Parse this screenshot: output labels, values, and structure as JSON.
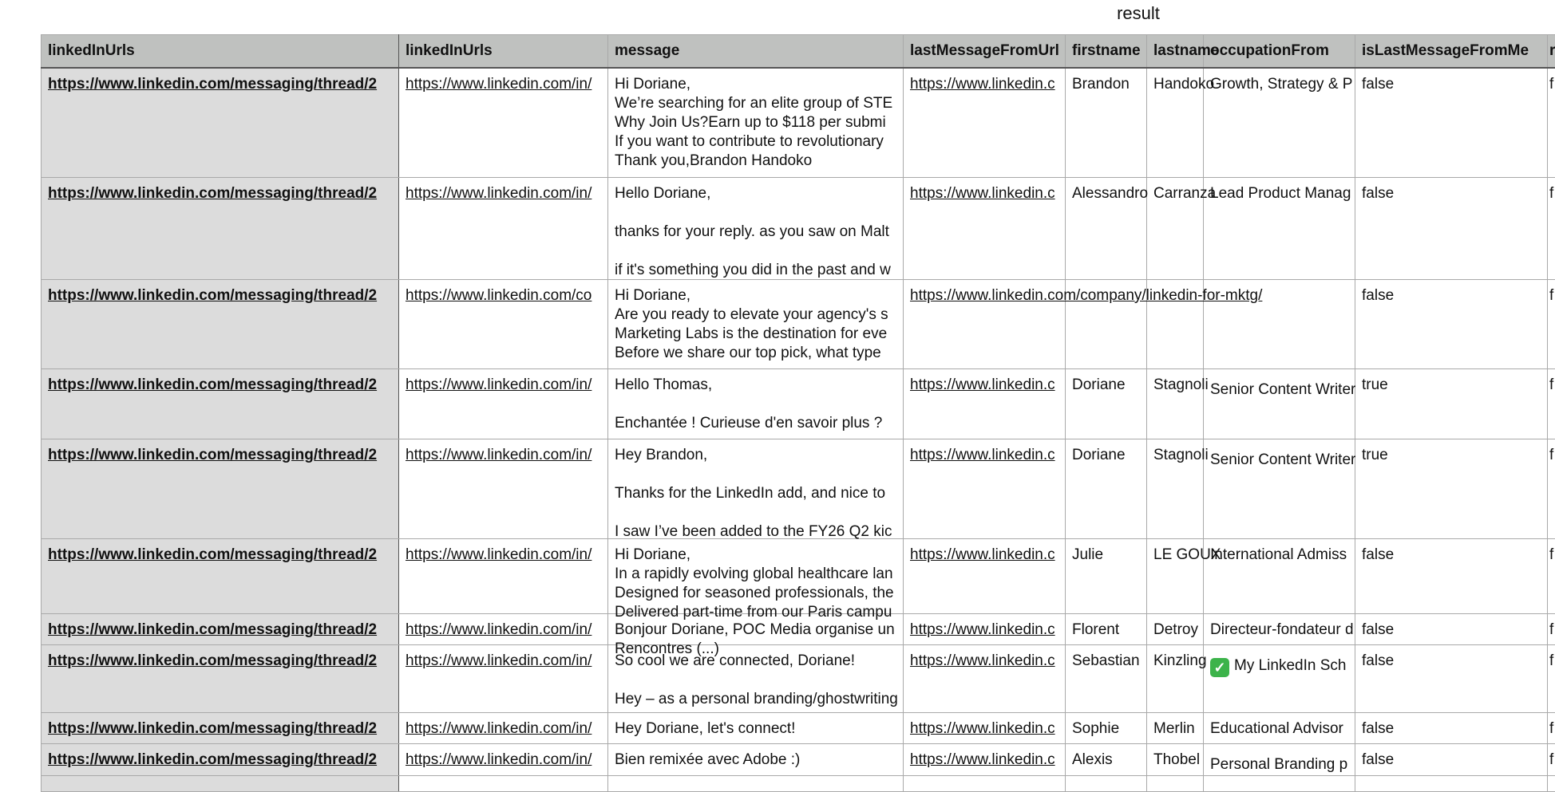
{
  "title": "result",
  "columns": [
    "linkedInUrls",
    "linkedInUrls",
    "message",
    "lastMessageFromUrl",
    "firstname",
    "lastname",
    "occupationFrom",
    "isLastMessageFromMe",
    "r"
  ],
  "rows": [
    {
      "thread": "https://www.linkedin.com/messaging/thread/2",
      "profile": "https://www.linkedin.com/in/",
      "message": [
        "Hi Doriane,",
        "We’re searching for an elite group of STE",
        "Why Join Us?Earn up to $118 per submi",
        "If you want to contribute to revolutionary",
        "Thank you,Brandon Handoko"
      ],
      "lastUrl": "https://www.linkedin.c",
      "firstname": "Brandon",
      "lastname": "Handoko",
      "occupation": "Growth, Strategy & P",
      "isLast": "false",
      "next": "f"
    },
    {
      "thread": "https://www.linkedin.com/messaging/thread/2",
      "profile": "https://www.linkedin.com/in/",
      "message": [
        "Hello Doriane,",
        "",
        "thanks for your reply. as you saw on Malt",
        "",
        "if it's something you did in the past and w"
      ],
      "lastUrl": "https://www.linkedin.c",
      "firstname": "Alessandro",
      "lastname": "Carranza",
      "occupation": "Lead Product Manag",
      "isLast": "false",
      "next": "f"
    },
    {
      "thread": "https://www.linkedin.com/messaging/thread/2",
      "profile": "https://www.linkedin.com/co",
      "message": [
        "Hi Doriane,",
        "Are you ready to elevate your agency's s",
        "Marketing Labs is the destination for eve",
        "Before we share our top pick, what type"
      ],
      "lastUrl": "https://www.linkedin.com/company/linkedin-for-mktg/",
      "firstname": "",
      "lastname": "",
      "occupation": "",
      "isLast": "false",
      "next": "f"
    },
    {
      "thread": "https://www.linkedin.com/messaging/thread/2",
      "profile": "https://www.linkedin.com/in/",
      "message": [
        "Hello Thomas,",
        "",
        "Enchantée ! Curieuse d'en savoir plus ?"
      ],
      "lastUrl": "https://www.linkedin.c",
      "firstname": "Doriane",
      "lastname": "Stagnoli",
      "occupation": "Senior Content Writer",
      "isLast": "true",
      "next": "f"
    },
    {
      "thread": "https://www.linkedin.com/messaging/thread/2",
      "profile": "https://www.linkedin.com/in/",
      "message": [
        "Hey Brandon,",
        "",
        "Thanks for the LinkedIn add, and nice to",
        "",
        "I saw I’ve been added to the FY26 Q2 kic"
      ],
      "lastUrl": "https://www.linkedin.c",
      "firstname": "Doriane",
      "lastname": "Stagnoli",
      "occupation": "Senior Content Writer",
      "isLast": "true",
      "next": "f"
    },
    {
      "thread": "https://www.linkedin.com/messaging/thread/2",
      "profile": "https://www.linkedin.com/in/",
      "message": [
        "Hi Doriane,",
        "In a rapidly evolving global healthcare lan",
        "Designed for seasoned professionals, the",
        "Delivered part-time from our Paris campu"
      ],
      "lastUrl": "https://www.linkedin.c",
      "firstname": "Julie",
      "lastname": "LE GOUX",
      "occupation": "International Admiss",
      "isLast": "false",
      "next": "f"
    },
    {
      "thread": "https://www.linkedin.com/messaging/thread/2",
      "profile": "https://www.linkedin.com/in/",
      "message": [
        "Bonjour Doriane, POC Media organise un",
        "Rencontres (...)"
      ],
      "lastUrl": "https://www.linkedin.c",
      "firstname": "Florent",
      "lastname": "Detroy",
      "occupation": "Directeur-fondateur d",
      "isLast": "false",
      "next": "f"
    },
    {
      "thread": "https://www.linkedin.com/messaging/thread/2",
      "profile": "https://www.linkedin.com/in/",
      "message": [
        "So cool we are connected, Doriane!",
        "",
        "Hey – as a personal branding/ghostwriting"
      ],
      "lastUrl": "https://www.linkedin.c",
      "firstname": "Sebastian",
      "lastname": "Kinzling",
      "occupation": "My LinkedIn Sch",
      "occupation_icon": "check-mark-emoji",
      "isLast": "false",
      "next": "f"
    },
    {
      "thread": "https://www.linkedin.com/messaging/thread/2",
      "profile": "https://www.linkedin.com/in/",
      "message": [
        "Hey Doriane, let's connect!"
      ],
      "lastUrl": "https://www.linkedin.c",
      "firstname": "Sophie",
      "lastname": "Merlin",
      "occupation": "Educational Advisor",
      "isLast": "false",
      "next": "f"
    },
    {
      "thread": "https://www.linkedin.com/messaging/thread/2",
      "profile": "https://www.linkedin.com/in/",
      "message": [
        "Bien remixée avec Adobe :)"
      ],
      "lastUrl": "https://www.linkedin.c",
      "firstname": "Alexis",
      "lastname": "Thobel",
      "occupation": "Personal Branding p",
      "isLast": "false",
      "next": "f"
    }
  ]
}
